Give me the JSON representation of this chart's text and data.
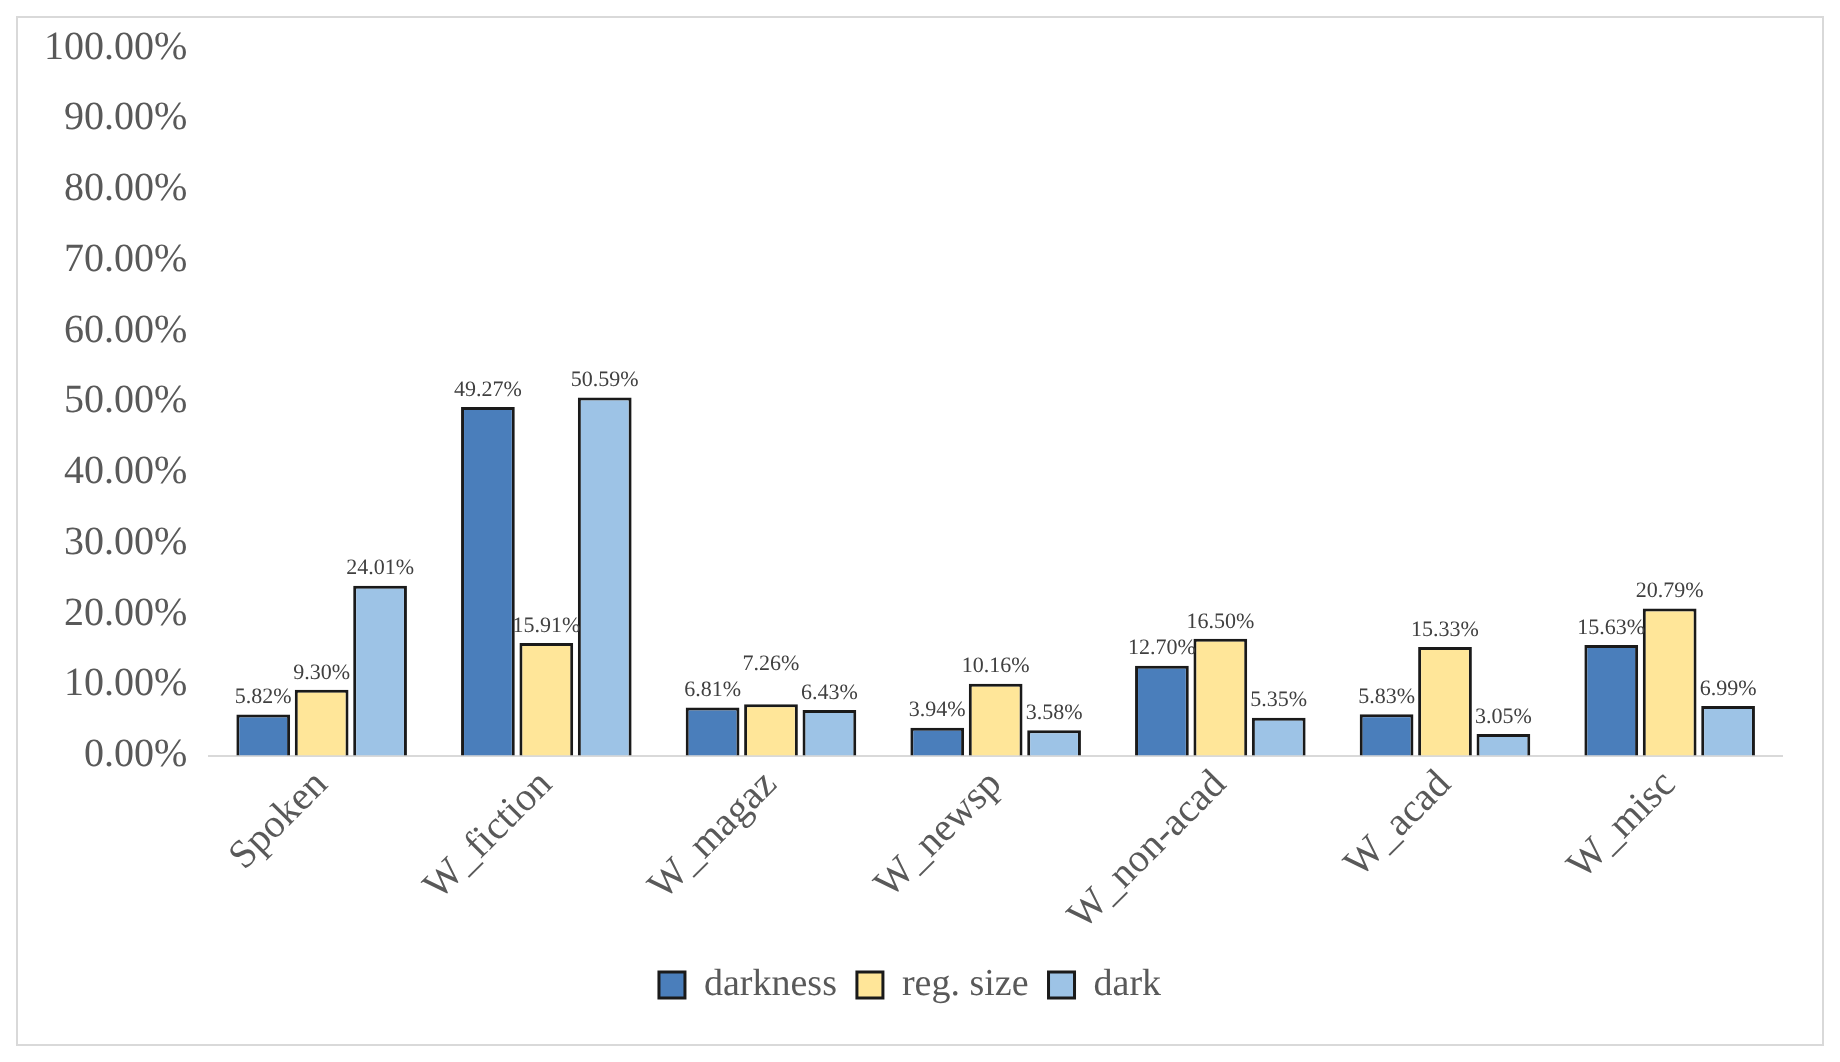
{
  "chart_data": {
    "type": "bar",
    "categories": [
      "Spoken",
      "W_fiction",
      "W_magaz",
      "W_newsp",
      "W_non-acad",
      "W_acad",
      "W_misc"
    ],
    "series": [
      {
        "name": "darkness",
        "color": "#4a7ebb",
        "values": [
          5.82,
          49.27,
          6.81,
          3.94,
          12.7,
          5.83,
          15.63
        ],
        "value_labels": [
          "5.82%",
          "49.27%",
          "6.81%",
          "3.94%",
          "12.70%",
          "5.83%",
          "15.63%"
        ]
      },
      {
        "name": "reg. size",
        "color": "#ffe699",
        "values": [
          9.3,
          15.91,
          7.26,
          10.16,
          16.5,
          15.33,
          20.79
        ],
        "value_labels": [
          "9.30%",
          "15.91%",
          "7.26%",
          "10.16%",
          "16.50%",
          "15.33%",
          "20.79%"
        ]
      },
      {
        "name": "dark",
        "color": "#9dc3e6",
        "values": [
          24.01,
          50.59,
          6.43,
          3.58,
          5.35,
          3.05,
          6.99
        ],
        "value_labels": [
          "24.01%",
          "50.59%",
          "6.43%",
          "3.58%",
          "5.35%",
          "3.05%",
          "6.99%"
        ]
      }
    ],
    "ylim": [
      0,
      100
    ],
    "yticks": [
      {
        "value": 0,
        "label": "0.00%"
      },
      {
        "value": 10,
        "label": "10.00%"
      },
      {
        "value": 20,
        "label": "20.00%"
      },
      {
        "value": 30,
        "label": "30.00%"
      },
      {
        "value": 40,
        "label": "40.00%"
      },
      {
        "value": 50,
        "label": "50.00%"
      },
      {
        "value": 60,
        "label": "60.00%"
      },
      {
        "value": 70,
        "label": "70.00%"
      },
      {
        "value": 80,
        "label": "80.00%"
      },
      {
        "value": 90,
        "label": "90.00%"
      },
      {
        "value": 100,
        "label": "100.00%"
      }
    ],
    "grid": false,
    "legend": "bottom"
  }
}
